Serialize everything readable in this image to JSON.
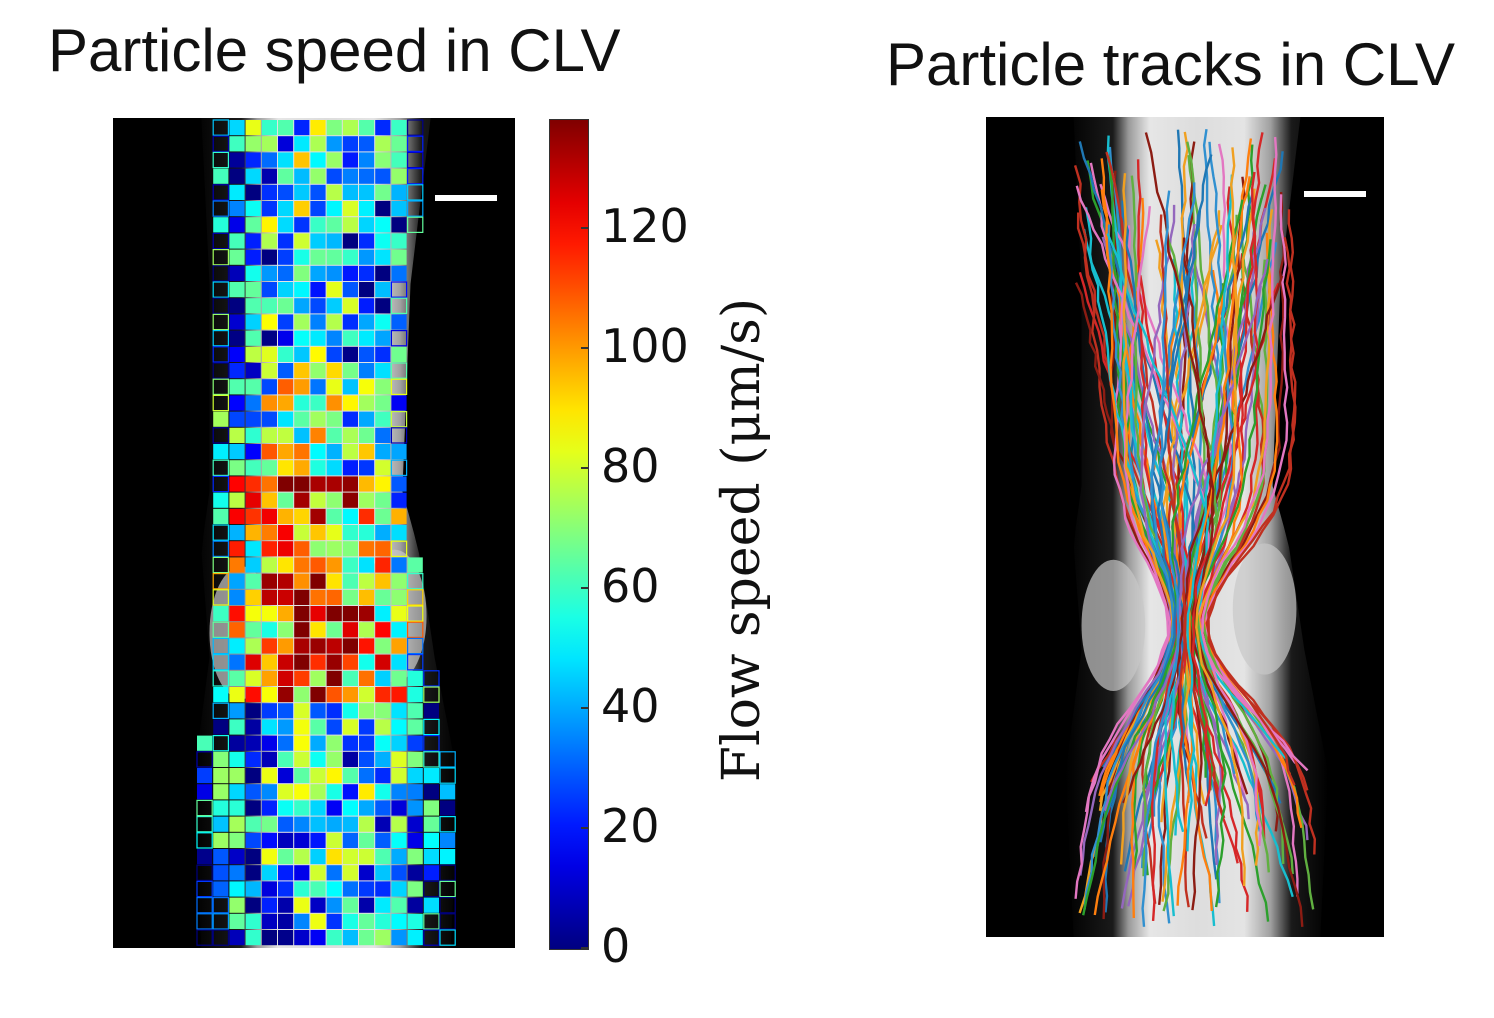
{
  "titles": {
    "left": "Particle speed in CLV",
    "right": "Particle tracks in CLV"
  },
  "colorbar": {
    "label": "Flow speed (μm/s)",
    "ticks": [
      "0",
      "20",
      "40",
      "60",
      "80",
      "100",
      "120"
    ],
    "min": 0,
    "max": 138,
    "colormap": "jet"
  },
  "chart_data": [
    {
      "type": "heatmap",
      "title": "Particle speed in CLV",
      "value_label": "Flow speed (μm/s)",
      "value_range": [
        0,
        138
      ],
      "grid": "colored squares overlaid on grayscale vessel image",
      "scale_bar": true
    },
    {
      "type": "line",
      "title": "Particle tracks in CLV",
      "series_description": "multicolored particle trajectories converging through valve region",
      "scale_bar": true
    }
  ]
}
